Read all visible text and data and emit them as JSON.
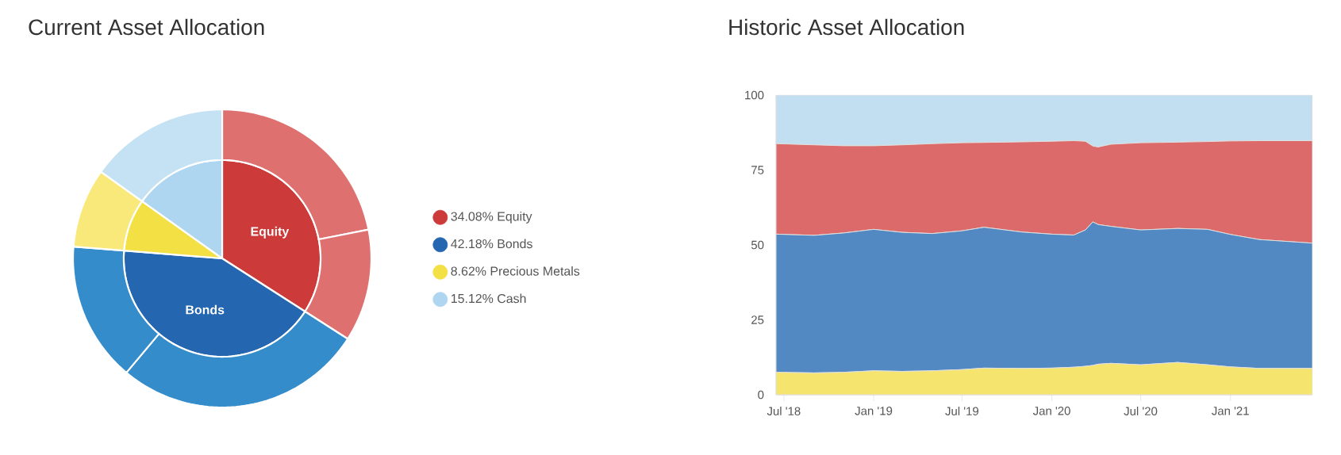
{
  "chart_data": [
    {
      "type": "pie",
      "title": "Current Asset Allocation",
      "categories": [
        "34.08% Equity",
        "42.18% Bonds",
        "8.62% Precious Metals",
        "15.12% Cash"
      ],
      "legend": "right",
      "values": [
        34.08,
        42.18,
        8.62,
        15.12
      ],
      "colors": [
        "#cc3a3a",
        "#2466b0",
        "#f3e044",
        "#afd6f0"
      ],
      "annotations": [
        {
          "text": "Equity",
          "x": "34.08% Equity"
        },
        {
          "text": "Bonds",
          "x": "42.18% Bonds"
        }
      ]
    },
    {
      "type": "donut",
      "categories": [
        null,
        null,
        null,
        null,
        null,
        null
      ],
      "values": [
        21.9,
        12.18,
        27.02,
        15.16,
        8.62,
        15.12
      ],
      "colors": [
        "#df7070",
        "#df7070",
        "#358ccb",
        "#358ccb",
        "#f9e97a",
        "#c5e2f4"
      ]
    },
    {
      "type": "area",
      "title": "Historic Asset Allocation",
      "stacked": true,
      "grid": "y",
      "x": [
        "2018-06-15",
        "2018-09-01",
        "2018-11-01",
        "2019-01-01",
        "2019-03-01",
        "2019-05-01",
        "2019-07-01",
        "2019-08-15",
        "2019-11-01",
        "2020-01-01",
        "2020-02-15",
        "2020-03-10",
        "2020-03-25",
        "2020-04-05",
        "2020-05-01",
        "2020-07-01",
        "2020-09-15",
        "2020-11-15",
        "2021-01-01",
        "2021-03-01",
        "2021-06-18"
      ],
      "series": [
        {
          "color": "#f5e46e",
          "values": [
            7.5,
            7.3,
            7.5,
            8.0,
            7.8,
            8.0,
            8.4,
            8.9,
            8.8,
            8.9,
            9.2,
            9.5,
            9.8,
            10.2,
            10.5,
            10.0,
            10.8,
            10.0,
            9.3,
            8.8,
            8.8
          ]
        },
        {
          "color": "#5389c2",
          "values": [
            46.1,
            45.9,
            46.5,
            47.2,
            46.4,
            45.8,
            46.3,
            47.0,
            45.5,
            44.7,
            44.1,
            45.5,
            47.9,
            46.6,
            45.7,
            45.0,
            44.7,
            45.2,
            44.2,
            43.0,
            41.8
          ]
        },
        {
          "color": "#dc6a6a",
          "values": [
            30.2,
            30.2,
            29.1,
            27.9,
            29.2,
            30.0,
            29.4,
            28.3,
            30.1,
            31.0,
            31.5,
            29.6,
            25.3,
            25.9,
            27.4,
            29.1,
            28.8,
            29.3,
            31.2,
            33.0,
            34.2
          ]
        },
        {
          "color": "#c2dff2",
          "values": [
            16.2,
            16.6,
            16.9,
            16.9,
            16.6,
            16.2,
            15.9,
            15.8,
            15.6,
            15.4,
            15.2,
            15.4,
            17.0,
            17.3,
            16.4,
            15.9,
            15.7,
            15.5,
            15.3,
            15.2,
            15.2
          ]
        }
      ],
      "xlim": [
        "2018-06-15",
        "2021-06-18"
      ],
      "xticks": [
        {
          "value": "2018-07-01",
          "label": "Jul '18"
        },
        {
          "value": "2019-01-01",
          "label": "Jan '19"
        },
        {
          "value": "2019-07-01",
          "label": "Jul '19"
        },
        {
          "value": "2020-01-01",
          "label": "Jan '20"
        },
        {
          "value": "2020-07-01",
          "label": "Jul '20"
        },
        {
          "value": "2021-01-01",
          "label": "Jan '21"
        }
      ],
      "ylim": [
        0,
        100
      ],
      "yticks": [
        0,
        25,
        50,
        75,
        100
      ]
    }
  ]
}
